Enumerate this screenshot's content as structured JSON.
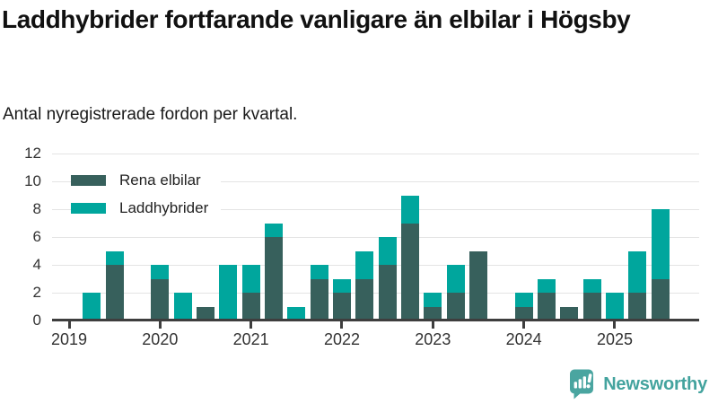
{
  "chart_data": {
    "type": "bar",
    "stacked": true,
    "title": "Laddhybrider fortfarande vanligare än elbilar i Högsby",
    "subtitle": "Antal nyregistrerade fordon per kvartal.",
    "x": [
      "2019 Q1",
      "2019 Q2",
      "2019 Q3",
      "2019 Q4",
      "2020 Q1",
      "2020 Q2",
      "2020 Q3",
      "2020 Q4",
      "2021 Q1",
      "2021 Q2",
      "2021 Q3",
      "2021 Q4",
      "2022 Q1",
      "2022 Q2",
      "2022 Q3",
      "2022 Q4",
      "2023 Q1",
      "2023 Q2",
      "2023 Q3",
      "2023 Q4",
      "2024 Q1",
      "2024 Q2",
      "2024 Q3",
      "2024 Q4",
      "2025 Q1",
      "2025 Q2",
      "2025 Q3"
    ],
    "series": [
      {
        "name": "Rena elbilar",
        "color": "#37605c",
        "values": [
          0,
          0,
          4,
          0,
          3,
          0,
          1,
          0,
          2,
          6,
          0,
          3,
          2,
          3,
          4,
          7,
          1,
          2,
          5,
          0,
          1,
          2,
          1,
          2,
          0,
          2,
          3
        ]
      },
      {
        "name": "Laddhybrider",
        "color": "#00a69d",
        "values": [
          0,
          2,
          1,
          0,
          1,
          2,
          0,
          4,
          2,
          1,
          1,
          1,
          1,
          2,
          2,
          2,
          1,
          2,
          0,
          0,
          1,
          1,
          0,
          1,
          2,
          3,
          5
        ]
      }
    ],
    "x_tick_labels": [
      "2019",
      "2020",
      "2021",
      "2022",
      "2023",
      "2024",
      "2025"
    ],
    "yticks": [
      0,
      2,
      4,
      6,
      8,
      10,
      12
    ],
    "ylim": [
      0,
      12
    ],
    "xlabel": "",
    "ylabel": "",
    "grid": true,
    "legend_position": "top-left"
  },
  "colors": {
    "electric_dark": "#37605c",
    "hybrid_teal": "#00a69d",
    "axis_line": "#3e3e3e",
    "gridline": "#e4e4e4",
    "tick_text": "#333333",
    "brand_teal": "#43a39e"
  },
  "footer": {
    "brand_name": "Newsworthy"
  }
}
